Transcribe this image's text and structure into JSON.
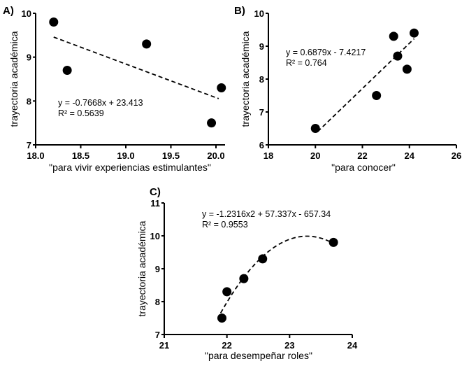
{
  "chart_data": [
    {
      "type": "scatter",
      "panel_label": "A)",
      "xlabel": "\"para vivir experiencias estimulantes\"",
      "ylabel": "trayectoria académica",
      "xlim": [
        18.0,
        20.1
      ],
      "ylim": [
        7,
        10
      ],
      "xticks": [
        "18.0",
        "18.5",
        "19.0",
        "19.5",
        "20.0"
      ],
      "xtick_values": [
        18.0,
        18.5,
        19.0,
        19.5,
        20.0
      ],
      "yticks": [
        "7",
        "8",
        "9",
        "10"
      ],
      "ytick_values": [
        7,
        8,
        9,
        10
      ],
      "points": [
        [
          18.2,
          9.8
        ],
        [
          18.35,
          8.7
        ],
        [
          19.23,
          9.3
        ],
        [
          19.95,
          7.5
        ],
        [
          20.06,
          8.3
        ]
      ],
      "fit": {
        "type": "linear",
        "coef": [
          -0.7668,
          23.413
        ],
        "x_range": [
          18.2,
          20.03
        ]
      },
      "equation": "y = -0.7668x + 23.413",
      "r2": "R² = 0.5639"
    },
    {
      "type": "scatter",
      "panel_label": "B)",
      "xlabel": "\"para conocer\"",
      "ylabel": "trayectoria académica",
      "xlim": [
        18,
        26
      ],
      "ylim": [
        6,
        10
      ],
      "xticks": [
        "18",
        "20",
        "22",
        "24",
        "26"
      ],
      "xtick_values": [
        18,
        20,
        22,
        24,
        26
      ],
      "yticks": [
        "6",
        "7",
        "8",
        "9",
        "10"
      ],
      "ytick_values": [
        6,
        7,
        8,
        9,
        10
      ],
      "points": [
        [
          20.0,
          6.5
        ],
        [
          22.6,
          7.5
        ],
        [
          23.33,
          9.3
        ],
        [
          23.5,
          8.7
        ],
        [
          23.9,
          8.3
        ],
        [
          24.2,
          9.4
        ]
      ],
      "fit": {
        "type": "linear",
        "coef": [
          0.6879,
          -7.4217
        ],
        "x_range": [
          20.1,
          24.2
        ]
      },
      "equation": "y = 0.6879x - 7.4217",
      "r2": "R² = 0.764"
    },
    {
      "type": "scatter",
      "panel_label": "C)",
      "xlabel": "\"para desempeñar roles\"",
      "ylabel": "trayectoria académica",
      "xlim": [
        21,
        24
      ],
      "ylim": [
        7,
        11
      ],
      "xticks": [
        "21",
        "22",
        "23",
        "24"
      ],
      "xtick_values": [
        21,
        22,
        23,
        24
      ],
      "yticks": [
        "7",
        "8",
        "9",
        "10",
        "11"
      ],
      "ytick_values": [
        7,
        8,
        9,
        10,
        11
      ],
      "points": [
        [
          21.92,
          7.5
        ],
        [
          22.0,
          8.3
        ],
        [
          22.27,
          8.7
        ],
        [
          22.57,
          9.3
        ],
        [
          23.7,
          9.8
        ]
      ],
      "fit": {
        "type": "quadratic",
        "coef": [
          -1.2316,
          57.337,
          -657.34
        ],
        "x_range": [
          21.9,
          23.7
        ]
      },
      "equation": "y = -1.2316x2 + 57.337x - 657.34",
      "r2": "R² = 0.9553"
    }
  ]
}
